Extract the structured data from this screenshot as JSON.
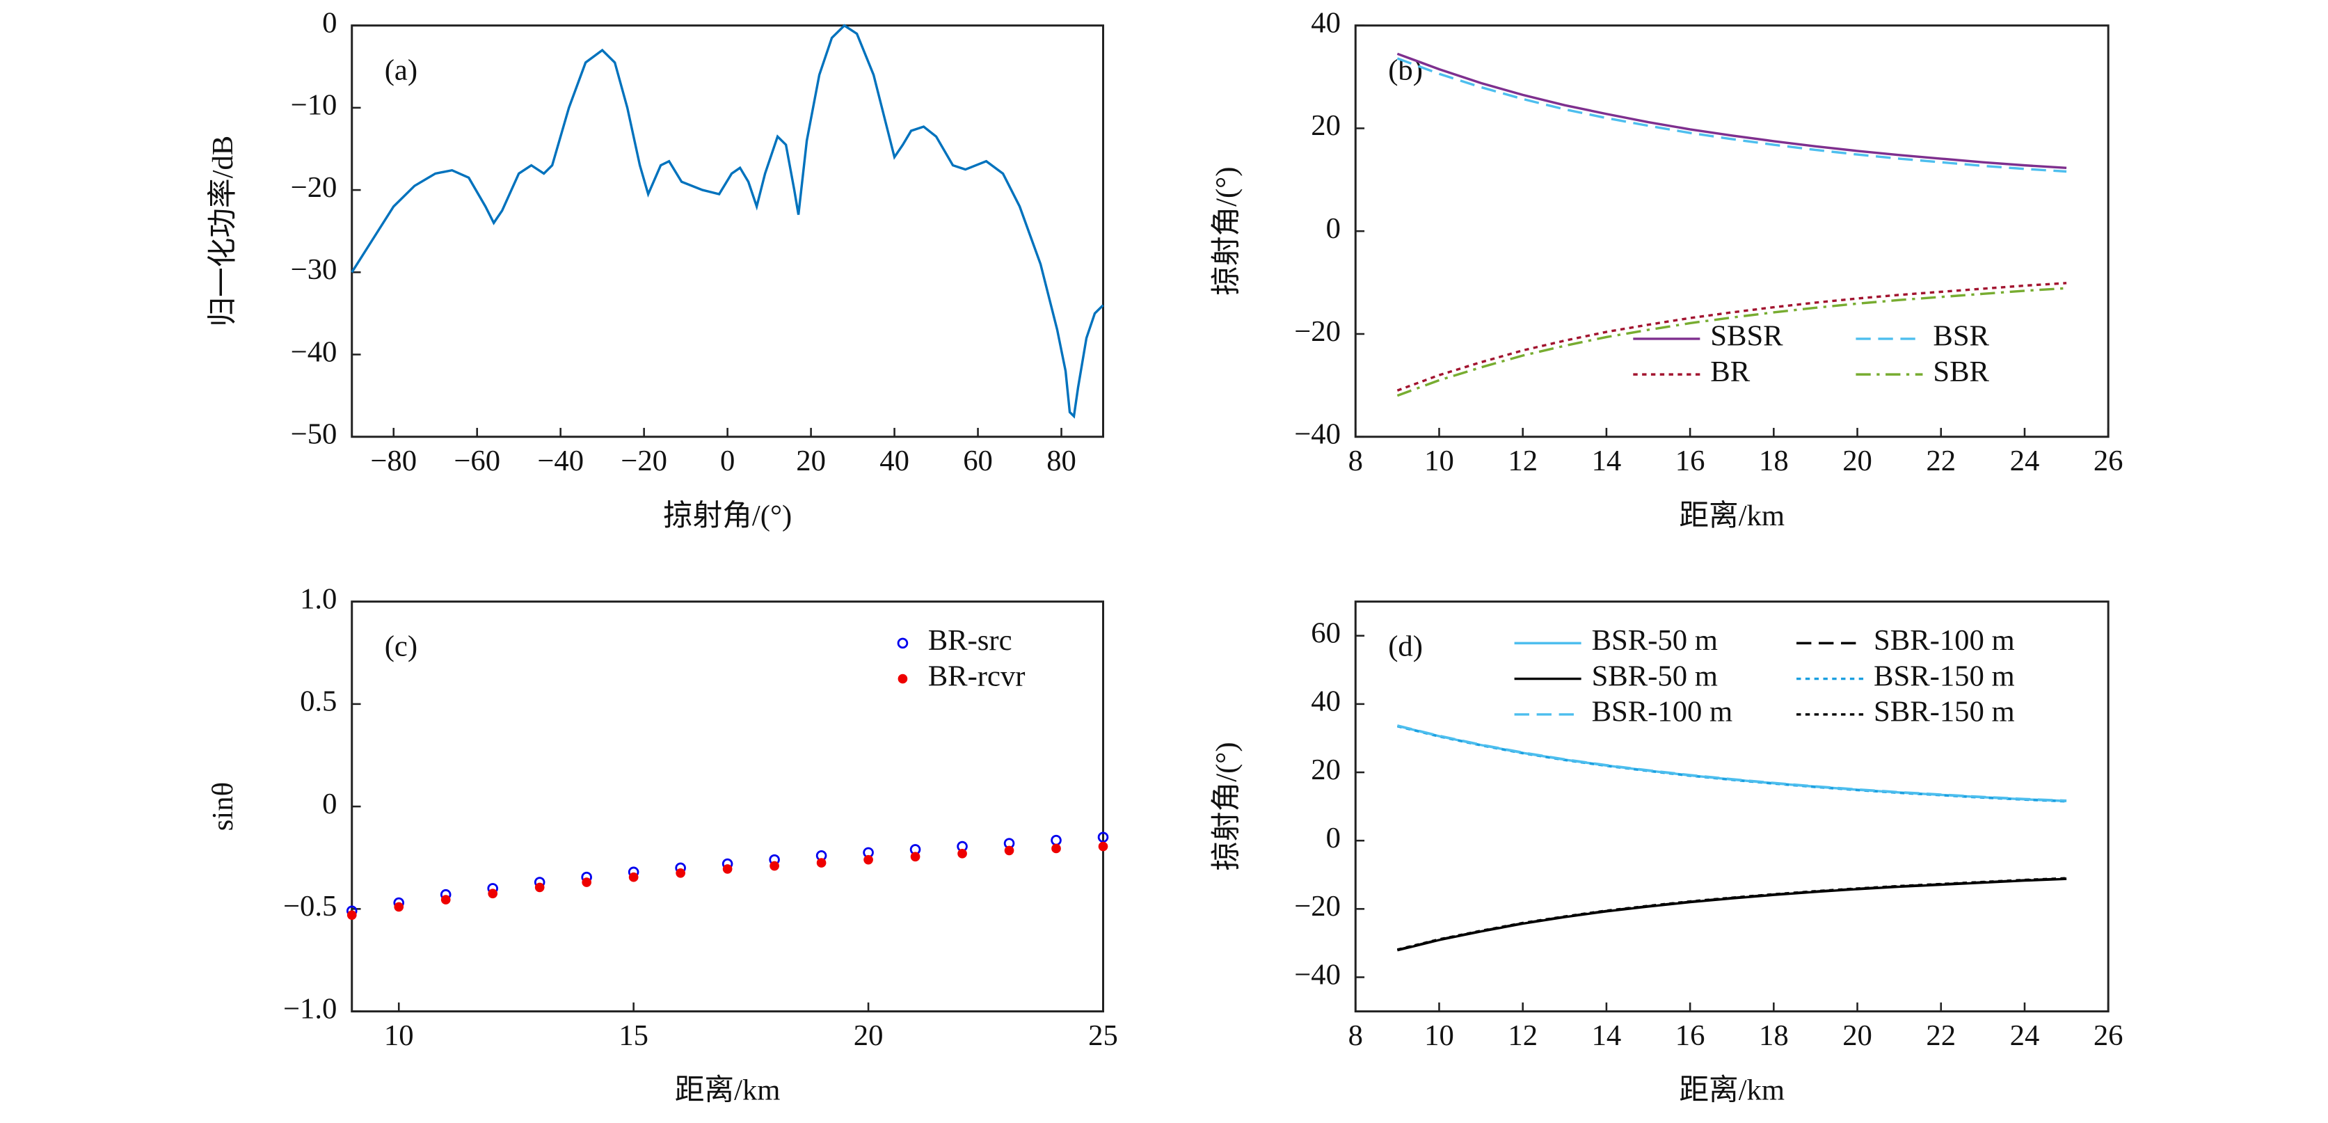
{
  "chart_data": [
    {
      "type": "line",
      "annotation": "(a)",
      "x_label": "掠射角/(°)",
      "y_label": "归一化功率/dB",
      "color": "#0072bd",
      "x": [
        -90,
        -85,
        -80,
        -75,
        -70,
        -66,
        -62,
        -58,
        -56,
        -54,
        -50,
        -47,
        -44,
        -42,
        -38,
        -34,
        -30,
        -27,
        -24,
        -21,
        -19,
        -16,
        -14,
        -11,
        -6,
        -2,
        1,
        3,
        5,
        7,
        9,
        12,
        14,
        16,
        17,
        19,
        22,
        25,
        28,
        31,
        35,
        38,
        40,
        42,
        44,
        47,
        50,
        54,
        57,
        62,
        66,
        70,
        75,
        79,
        81,
        82,
        83,
        84,
        86,
        88,
        90
      ],
      "values": [
        -30,
        -26,
        -22,
        -19.5,
        -18,
        -17.6,
        -18.5,
        -22,
        -24,
        -22.5,
        -18,
        -17,
        -18,
        -17,
        -10,
        -4.5,
        -3,
        -4.5,
        -10,
        -17,
        -20.5,
        -17,
        -16.5,
        -19,
        -20,
        -20.5,
        -18,
        -17.3,
        -19,
        -22,
        -18,
        -13.5,
        -14.5,
        -20,
        -23,
        -14,
        -6,
        -1.5,
        0,
        -1,
        -6,
        -12,
        -16,
        -14.5,
        -12.8,
        -12.3,
        -13.5,
        -17,
        -17.5,
        -16.5,
        -18,
        -22,
        -29,
        -37,
        -42,
        -47,
        -47.5,
        -44,
        -38,
        -35,
        -34
      ],
      "xlim": [
        -90,
        90
      ],
      "xticks": [
        {
          "value": -80,
          "label": "−80"
        },
        {
          "value": -60,
          "label": "−60"
        },
        {
          "value": -40,
          "label": "−40"
        },
        {
          "value": -20,
          "label": "−20"
        },
        0,
        20,
        40,
        60,
        80
      ],
      "ylim": [
        -50,
        0
      ],
      "yticks": [
        {
          "value": -50,
          "label": "−50"
        },
        {
          "value": -40,
          "label": "−40"
        },
        {
          "value": -30,
          "label": "−30"
        },
        {
          "value": -20,
          "label": "−20"
        },
        {
          "value": -10,
          "label": "−10"
        },
        0
      ]
    },
    {
      "type": "line",
      "annotation": "(b)",
      "x_label": "距离/km",
      "y_label": "掠射角/(°)",
      "legend_loc": "lower right",
      "legend_ncol": 2,
      "x": [
        9,
        10,
        11,
        12,
        13,
        14,
        15,
        16,
        17,
        18,
        19,
        20,
        21,
        22,
        23,
        24,
        25
      ],
      "series": [
        {
          "name": "SBSR",
          "color": "#7e2f8e",
          "dash": "solid",
          "values": [
            34.5,
            31.5,
            28.8,
            26.5,
            24.5,
            22.8,
            21.2,
            19.8,
            18.6,
            17.5,
            16.5,
            15.6,
            14.8,
            14.1,
            13.4,
            12.8,
            12.3
          ]
        },
        {
          "name": "BSR",
          "color": "#4dbeee",
          "dash": "dashed",
          "values": [
            33.6,
            30.6,
            28,
            25.7,
            23.7,
            22,
            20.5,
            19.1,
            17.9,
            16.8,
            15.8,
            14.9,
            14.1,
            13.4,
            12.7,
            12.1,
            11.6
          ]
        },
        {
          "name": "BR",
          "color": "#a2142f",
          "dash": "dotted",
          "values": [
            -31,
            -28,
            -25.5,
            -23.2,
            -21.3,
            -19.6,
            -18.2,
            -16.9,
            -15.8,
            -14.8,
            -13.9,
            -13.1,
            -12.4,
            -11.8,
            -11.2,
            -10.6,
            -10.1
          ]
        },
        {
          "name": "SBR",
          "color": "#77ac30",
          "dash": "dashdot",
          "values": [
            -32,
            -29,
            -26.5,
            -24.2,
            -22.3,
            -20.6,
            -19.2,
            -17.9,
            -16.8,
            -15.8,
            -14.9,
            -14.1,
            -13.4,
            -12.8,
            -12.2,
            -11.6,
            -11.1
          ]
        }
      ],
      "xlim": [
        8,
        26
      ],
      "xticks": [
        8,
        10,
        12,
        14,
        16,
        18,
        20,
        22,
        24,
        26
      ],
      "ylim": [
        -40,
        40
      ],
      "yticks": [
        {
          "value": -40,
          "label": "−40"
        },
        {
          "value": -20,
          "label": "−20"
        },
        0,
        20,
        40
      ]
    },
    {
      "type": "scatter",
      "annotation": "(c)",
      "x_label": "距离/km",
      "y_label": "sinθ",
      "legend_loc": "upper right",
      "legend_ncol": 1,
      "x": [
        9,
        10,
        11,
        12,
        13,
        14,
        15,
        16,
        17,
        18,
        19,
        20,
        21,
        22,
        23,
        24,
        25
      ],
      "series": [
        {
          "name": "BR-src",
          "color": "#0000ee",
          "marker": "circle",
          "values": [
            -0.51,
            -0.47,
            -0.43,
            -0.4,
            -0.37,
            -0.345,
            -0.32,
            -0.3,
            -0.28,
            -0.26,
            -0.24,
            -0.225,
            -0.21,
            -0.195,
            -0.18,
            -0.165,
            -0.15
          ]
        },
        {
          "name": "BR-rcvr",
          "color": "#ee0000",
          "marker": "dot",
          "values": [
            -0.53,
            -0.49,
            -0.455,
            -0.425,
            -0.395,
            -0.37,
            -0.345,
            -0.325,
            -0.305,
            -0.29,
            -0.275,
            -0.26,
            -0.245,
            -0.23,
            -0.215,
            -0.205,
            -0.195
          ]
        }
      ],
      "xlim": [
        9,
        25
      ],
      "xticks": [
        10,
        15,
        20,
        25
      ],
      "ylim": [
        -1,
        1
      ],
      "yticks": [
        {
          "value": -1,
          "label": "−1.0"
        },
        {
          "value": -0.5,
          "label": "−0.5"
        },
        0,
        0.5,
        {
          "value": 1,
          "label": "1.0"
        }
      ]
    },
    {
      "type": "line",
      "annotation": "(d)",
      "x_label": "距离/km",
      "y_label": "掠射角/(°)",
      "legend_loc": "upper right",
      "legend_ncol": 2,
      "x": [
        9,
        10,
        11,
        12,
        13,
        14,
        15,
        16,
        17,
        18,
        19,
        20,
        21,
        22,
        23,
        24,
        25
      ],
      "series": [
        {
          "name": "BSR-50 m",
          "color": "#4dbeee",
          "dash": "solid",
          "values": [
            33.6,
            30.6,
            28,
            25.7,
            23.7,
            22,
            20.5,
            19.1,
            17.9,
            16.8,
            15.8,
            14.9,
            14.1,
            13.4,
            12.7,
            12.1,
            11.6
          ]
        },
        {
          "name": "SBR-100 m",
          "color": "#000000",
          "dash": "dashed",
          "values": [
            -32,
            -29,
            -26.5,
            -24.2,
            -22.3,
            -20.6,
            -19.2,
            -17.9,
            -16.8,
            -15.8,
            -14.9,
            -14.1,
            -13.4,
            -12.8,
            -12.2,
            -11.6,
            -11.1
          ]
        },
        {
          "name": "SBR-50 m",
          "color": "#000000",
          "dash": "solid",
          "values": [
            -32.1,
            -29.1,
            -26.6,
            -24.3,
            -22.4,
            -20.7,
            -19.3,
            -18,
            -16.9,
            -15.9,
            -15,
            -14.2,
            -13.5,
            -12.9,
            -12.3,
            -11.7,
            -11.2
          ]
        },
        {
          "name": "BSR-150 m",
          "color": "#1a9fe0",
          "dash": "dotted",
          "values": [
            33.5,
            30.5,
            27.9,
            25.6,
            23.6,
            21.9,
            20.4,
            19,
            17.8,
            16.7,
            15.7,
            14.8,
            14,
            13.3,
            12.6,
            12,
            11.5
          ]
        },
        {
          "name": "BSR-100 m",
          "color": "#4dbeee",
          "dash": "dashed",
          "values": [
            33.7,
            30.7,
            28.1,
            25.8,
            23.8,
            22.1,
            20.6,
            19.2,
            18,
            16.9,
            15.9,
            15,
            14.2,
            13.5,
            12.8,
            12.2,
            11.7
          ]
        },
        {
          "name": "SBR-150 m",
          "color": "#000000",
          "dash": "dotted",
          "values": [
            -31.9,
            -28.9,
            -26.4,
            -24.1,
            -22.2,
            -20.5,
            -19.1,
            -17.8,
            -16.7,
            -15.7,
            -14.8,
            -14,
            -13.3,
            -12.7,
            -12.1,
            -11.5,
            -11
          ]
        }
      ],
      "xlim": [
        8,
        26
      ],
      "xticks": [
        8,
        10,
        12,
        14,
        16,
        18,
        20,
        22,
        24,
        26
      ],
      "ylim": [
        -50,
        70
      ],
      "yticks": [
        {
          "value": -40,
          "label": "−40"
        },
        {
          "value": -20,
          "label": "−20"
        },
        0,
        20,
        40,
        60
      ]
    }
  ]
}
